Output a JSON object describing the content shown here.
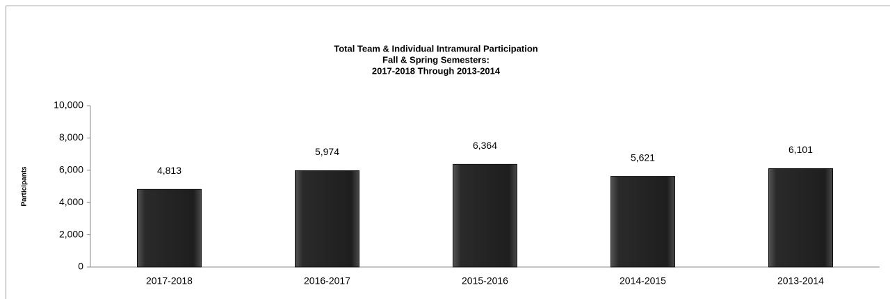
{
  "chart_data": {
    "type": "bar",
    "title": [
      "Total Team & Individual Intramural Participation",
      "Fall & Spring Semesters:",
      "2017-2018 Through 2013-2014"
    ],
    "y_label": "Participants",
    "categories": [
      "2017-2018",
      "2016-2017",
      "2015-2016",
      "2014-2015",
      "2013-2014"
    ],
    "values": [
      4813,
      5974,
      6364,
      5621,
      6101
    ],
    "value_labels": [
      "4,813",
      "5,974",
      "6,364",
      "5,621",
      "6,101"
    ],
    "color": "#2a2a2a",
    "ylim": [
      0,
      10000
    ],
    "yticks": [
      0,
      {
        "value": 2000,
        "label": "2,000"
      },
      {
        "value": 4000,
        "label": "4,000"
      },
      {
        "value": 6000,
        "label": "6,000"
      },
      {
        "value": 8000,
        "label": "8,000"
      },
      {
        "value": 10000,
        "label": "10,000"
      }
    ],
    "grid": false
  }
}
